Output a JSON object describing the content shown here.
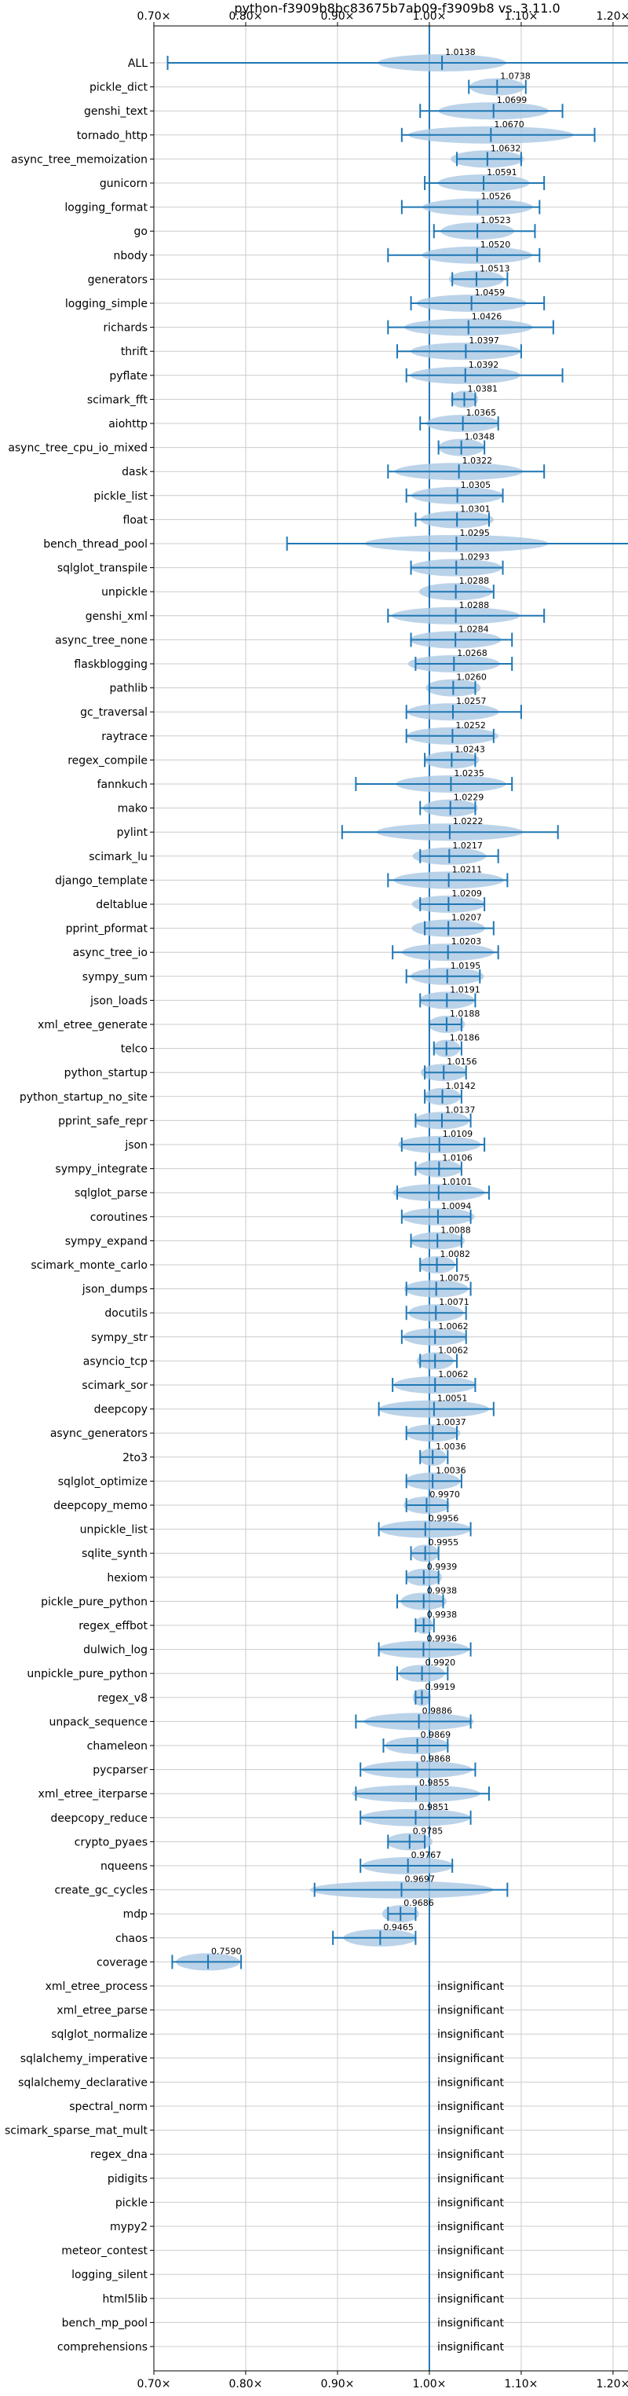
{
  "chart_data": {
    "type": "violin",
    "title": "python-f3909b8bc83675b7ab09-f3909b8 vs. 3.11.0",
    "xlim": [
      0.7,
      1.23
    ],
    "x_ticks": [
      0.7,
      0.8,
      0.9,
      1.0,
      1.1,
      1.2
    ],
    "x_tick_labels": [
      "0.70×",
      "0.80×",
      "0.90×",
      "1.00×",
      "1.10×",
      "1.20×"
    ],
    "reference_line": 1.0,
    "grid": true,
    "colors": {
      "violin": "#aac8e4",
      "errorbar": "#1f77b4",
      "grid": "#cccccc"
    },
    "insignificant_text": "insignificant",
    "benchmarks": [
      {
        "name": "ALL",
        "value": 1.0138,
        "lo": 0.715,
        "hi": 1.235,
        "spread": 0.07
      },
      {
        "name": "pickle_dict",
        "value": 1.0738,
        "lo": 1.043,
        "hi": 1.105,
        "spread": 0.03
      },
      {
        "name": "genshi_text",
        "value": 1.0699,
        "lo": 0.99,
        "hi": 1.145,
        "spread": 0.06
      },
      {
        "name": "tornado_http",
        "value": 1.067,
        "lo": 0.97,
        "hi": 1.18,
        "spread": 0.09
      },
      {
        "name": "async_tree_memoization",
        "value": 1.0632,
        "lo": 1.03,
        "hi": 1.1,
        "spread": 0.04
      },
      {
        "name": "gunicorn",
        "value": 1.0591,
        "lo": 0.995,
        "hi": 1.125,
        "spread": 0.05
      },
      {
        "name": "logging_format",
        "value": 1.0526,
        "lo": 0.97,
        "hi": 1.12,
        "spread": 0.06
      },
      {
        "name": "go",
        "value": 1.0523,
        "lo": 1.005,
        "hi": 1.115,
        "spread": 0.04
      },
      {
        "name": "nbody",
        "value": 1.052,
        "lo": 0.955,
        "hi": 1.12,
        "spread": 0.06
      },
      {
        "name": "generators",
        "value": 1.0513,
        "lo": 1.025,
        "hi": 1.085,
        "spread": 0.03
      },
      {
        "name": "logging_simple",
        "value": 1.0459,
        "lo": 0.98,
        "hi": 1.125,
        "spread": 0.06
      },
      {
        "name": "richards",
        "value": 1.0426,
        "lo": 0.955,
        "hi": 1.135,
        "spread": 0.07
      },
      {
        "name": "thrift",
        "value": 1.0397,
        "lo": 0.965,
        "hi": 1.1,
        "spread": 0.06
      },
      {
        "name": "pyflate",
        "value": 1.0392,
        "lo": 0.975,
        "hi": 1.145,
        "spread": 0.06
      },
      {
        "name": "scimark_fft",
        "value": 1.0381,
        "lo": 1.025,
        "hi": 1.05,
        "spread": 0.015
      },
      {
        "name": "aiohttp",
        "value": 1.0365,
        "lo": 0.99,
        "hi": 1.075,
        "spread": 0.04
      },
      {
        "name": "async_tree_cpu_io_mixed",
        "value": 1.0348,
        "lo": 1.01,
        "hi": 1.06,
        "spread": 0.025
      },
      {
        "name": "dask",
        "value": 1.0322,
        "lo": 0.955,
        "hi": 1.125,
        "spread": 0.07
      },
      {
        "name": "pickle_list",
        "value": 1.0305,
        "lo": 0.975,
        "hi": 1.08,
        "spread": 0.05
      },
      {
        "name": "float",
        "value": 1.0301,
        "lo": 0.985,
        "hi": 1.065,
        "spread": 0.04
      },
      {
        "name": "bench_thread_pool",
        "value": 1.0295,
        "lo": 0.845,
        "hi": 1.235,
        "spread": 0.1
      },
      {
        "name": "sqlglot_transpile",
        "value": 1.0293,
        "lo": 0.98,
        "hi": 1.08,
        "spread": 0.05
      },
      {
        "name": "unpickle",
        "value": 1.0288,
        "lo": 1.0,
        "hi": 1.07,
        "spread": 0.04
      },
      {
        "name": "genshi_xml",
        "value": 1.0288,
        "lo": 0.955,
        "hi": 1.125,
        "spread": 0.07
      },
      {
        "name": "async_tree_none",
        "value": 1.0284,
        "lo": 0.98,
        "hi": 1.09,
        "spread": 0.05
      },
      {
        "name": "flaskblogging",
        "value": 1.0268,
        "lo": 0.985,
        "hi": 1.09,
        "spread": 0.05
      },
      {
        "name": "pathlib",
        "value": 1.026,
        "lo": 1.0,
        "hi": 1.05,
        "spread": 0.03
      },
      {
        "name": "gc_traversal",
        "value": 1.0257,
        "lo": 0.975,
        "hi": 1.1,
        "spread": 0.05
      },
      {
        "name": "raytrace",
        "value": 1.0252,
        "lo": 0.975,
        "hi": 1.07,
        "spread": 0.05
      },
      {
        "name": "regex_compile",
        "value": 1.0243,
        "lo": 0.995,
        "hi": 1.05,
        "spread": 0.03
      },
      {
        "name": "fannkuch",
        "value": 1.0235,
        "lo": 0.92,
        "hi": 1.09,
        "spread": 0.06
      },
      {
        "name": "mako",
        "value": 1.0229,
        "lo": 0.99,
        "hi": 1.05,
        "spread": 0.03
      },
      {
        "name": "pylint",
        "value": 1.0222,
        "lo": 0.905,
        "hi": 1.14,
        "spread": 0.08
      },
      {
        "name": "scimark_lu",
        "value": 1.0217,
        "lo": 0.99,
        "hi": 1.075,
        "spread": 0.04
      },
      {
        "name": "django_template",
        "value": 1.0211,
        "lo": 0.955,
        "hi": 1.085,
        "spread": 0.06
      },
      {
        "name": "deltablue",
        "value": 1.0209,
        "lo": 0.99,
        "hi": 1.06,
        "spread": 0.04
      },
      {
        "name": "pprint_pformat",
        "value": 1.0207,
        "lo": 0.995,
        "hi": 1.07,
        "spread": 0.04
      },
      {
        "name": "async_tree_io",
        "value": 1.0203,
        "lo": 0.96,
        "hi": 1.075,
        "spread": 0.05
      },
      {
        "name": "sympy_sum",
        "value": 1.0195,
        "lo": 0.975,
        "hi": 1.055,
        "spread": 0.04
      },
      {
        "name": "json_loads",
        "value": 1.0191,
        "lo": 0.99,
        "hi": 1.05,
        "spread": 0.03
      },
      {
        "name": "xml_etree_generate",
        "value": 1.0188,
        "lo": 1.0,
        "hi": 1.035,
        "spread": 0.02
      },
      {
        "name": "telco",
        "value": 1.0186,
        "lo": 1.005,
        "hi": 1.035,
        "spread": 0.015
      },
      {
        "name": "python_startup",
        "value": 1.0156,
        "lo": 0.995,
        "hi": 1.04,
        "spread": 0.025
      },
      {
        "name": "python_startup_no_site",
        "value": 1.0142,
        "lo": 0.995,
        "hi": 1.035,
        "spread": 0.02
      },
      {
        "name": "pprint_safe_repr",
        "value": 1.0137,
        "lo": 0.985,
        "hi": 1.045,
        "spread": 0.03
      },
      {
        "name": "json",
        "value": 1.0109,
        "lo": 0.97,
        "hi": 1.06,
        "spread": 0.045
      },
      {
        "name": "sympy_integrate",
        "value": 1.0106,
        "lo": 0.985,
        "hi": 1.035,
        "spread": 0.025
      },
      {
        "name": "sqlglot_parse",
        "value": 1.0101,
        "lo": 0.965,
        "hi": 1.065,
        "spread": 0.05
      },
      {
        "name": "coroutines",
        "value": 1.0094,
        "lo": 0.97,
        "hi": 1.045,
        "spread": 0.04
      },
      {
        "name": "sympy_expand",
        "value": 1.0088,
        "lo": 0.98,
        "hi": 1.035,
        "spread": 0.03
      },
      {
        "name": "scimark_monte_carlo",
        "value": 1.0082,
        "lo": 0.99,
        "hi": 1.03,
        "spread": 0.02
      },
      {
        "name": "json_dumps",
        "value": 1.0075,
        "lo": 0.975,
        "hi": 1.045,
        "spread": 0.035
      },
      {
        "name": "docutils",
        "value": 1.0071,
        "lo": 0.975,
        "hi": 1.04,
        "spread": 0.03
      },
      {
        "name": "sympy_str",
        "value": 1.0062,
        "lo": 0.97,
        "hi": 1.04,
        "spread": 0.035
      },
      {
        "name": "asyncio_tcp",
        "value": 1.0062,
        "lo": 0.99,
        "hi": 1.03,
        "spread": 0.02
      },
      {
        "name": "scimark_sor",
        "value": 1.0062,
        "lo": 0.96,
        "hi": 1.05,
        "spread": 0.045
      },
      {
        "name": "deepcopy",
        "value": 1.0051,
        "lo": 0.945,
        "hi": 1.07,
        "spread": 0.06
      },
      {
        "name": "async_generators",
        "value": 1.0037,
        "lo": 0.975,
        "hi": 1.03,
        "spread": 0.03
      },
      {
        "name": "2to3",
        "value": 1.0036,
        "lo": 0.99,
        "hi": 1.02,
        "spread": 0.015
      },
      {
        "name": "sqlglot_optimize",
        "value": 1.0036,
        "lo": 0.975,
        "hi": 1.035,
        "spread": 0.03
      },
      {
        "name": "deepcopy_memo",
        "value": 0.997,
        "lo": 0.975,
        "hi": 1.02,
        "spread": 0.025
      },
      {
        "name": "unpickle_list",
        "value": 0.9956,
        "lo": 0.945,
        "hi": 1.045,
        "spread": 0.05
      },
      {
        "name": "sqlite_synth",
        "value": 0.9955,
        "lo": 0.98,
        "hi": 1.01,
        "spread": 0.015
      },
      {
        "name": "hexiom",
        "value": 0.9939,
        "lo": 0.975,
        "hi": 1.01,
        "spread": 0.02
      },
      {
        "name": "pickle_pure_python",
        "value": 0.9938,
        "lo": 0.965,
        "hi": 1.015,
        "spread": 0.025
      },
      {
        "name": "regex_effbot",
        "value": 0.9938,
        "lo": 0.985,
        "hi": 1.005,
        "spread": 0.01
      },
      {
        "name": "dulwich_log",
        "value": 0.9936,
        "lo": 0.945,
        "hi": 1.045,
        "spread": 0.05
      },
      {
        "name": "unpickle_pure_python",
        "value": 0.992,
        "lo": 0.965,
        "hi": 1.02,
        "spread": 0.025
      },
      {
        "name": "regex_v8",
        "value": 0.9919,
        "lo": 0.985,
        "hi": 1.0,
        "spread": 0.01
      },
      {
        "name": "unpack_sequence",
        "value": 0.9886,
        "lo": 0.92,
        "hi": 1.045,
        "spread": 0.06
      },
      {
        "name": "chameleon",
        "value": 0.9869,
        "lo": 0.95,
        "hi": 1.02,
        "spread": 0.035
      },
      {
        "name": "pycparser",
        "value": 0.9868,
        "lo": 0.925,
        "hi": 1.05,
        "spread": 0.06
      },
      {
        "name": "xml_etree_iterparse",
        "value": 0.9855,
        "lo": 0.92,
        "hi": 1.065,
        "spread": 0.07
      },
      {
        "name": "deepcopy_reduce",
        "value": 0.9851,
        "lo": 0.925,
        "hi": 1.045,
        "spread": 0.06
      },
      {
        "name": "crypto_pyaes",
        "value": 0.9785,
        "lo": 0.955,
        "hi": 0.995,
        "spread": 0.025
      },
      {
        "name": "nqueens",
        "value": 0.9767,
        "lo": 0.925,
        "hi": 1.025,
        "spread": 0.05
      },
      {
        "name": "create_gc_cycles",
        "value": 0.9697,
        "lo": 0.875,
        "hi": 1.085,
        "spread": 0.1
      },
      {
        "name": "mdp",
        "value": 0.9686,
        "lo": 0.955,
        "hi": 0.985,
        "spread": 0.02
      },
      {
        "name": "chaos",
        "value": 0.9465,
        "lo": 0.895,
        "hi": 0.985,
        "spread": 0.04
      },
      {
        "name": "coverage",
        "value": 0.759,
        "lo": 0.72,
        "hi": 0.795,
        "spread": 0.035
      },
      {
        "name": "xml_etree_process",
        "value": null
      },
      {
        "name": "xml_etree_parse",
        "value": null
      },
      {
        "name": "sqlglot_normalize",
        "value": null
      },
      {
        "name": "sqlalchemy_imperative",
        "value": null
      },
      {
        "name": "sqlalchemy_declarative",
        "value": null
      },
      {
        "name": "spectral_norm",
        "value": null
      },
      {
        "name": "scimark_sparse_mat_mult",
        "value": null
      },
      {
        "name": "regex_dna",
        "value": null
      },
      {
        "name": "pidigits",
        "value": null
      },
      {
        "name": "pickle",
        "value": null
      },
      {
        "name": "mypy2",
        "value": null
      },
      {
        "name": "meteor_contest",
        "value": null
      },
      {
        "name": "logging_silent",
        "value": null
      },
      {
        "name": "html5lib",
        "value": null
      },
      {
        "name": "bench_mp_pool",
        "value": null
      },
      {
        "name": "comprehensions",
        "value": null
      }
    ]
  }
}
